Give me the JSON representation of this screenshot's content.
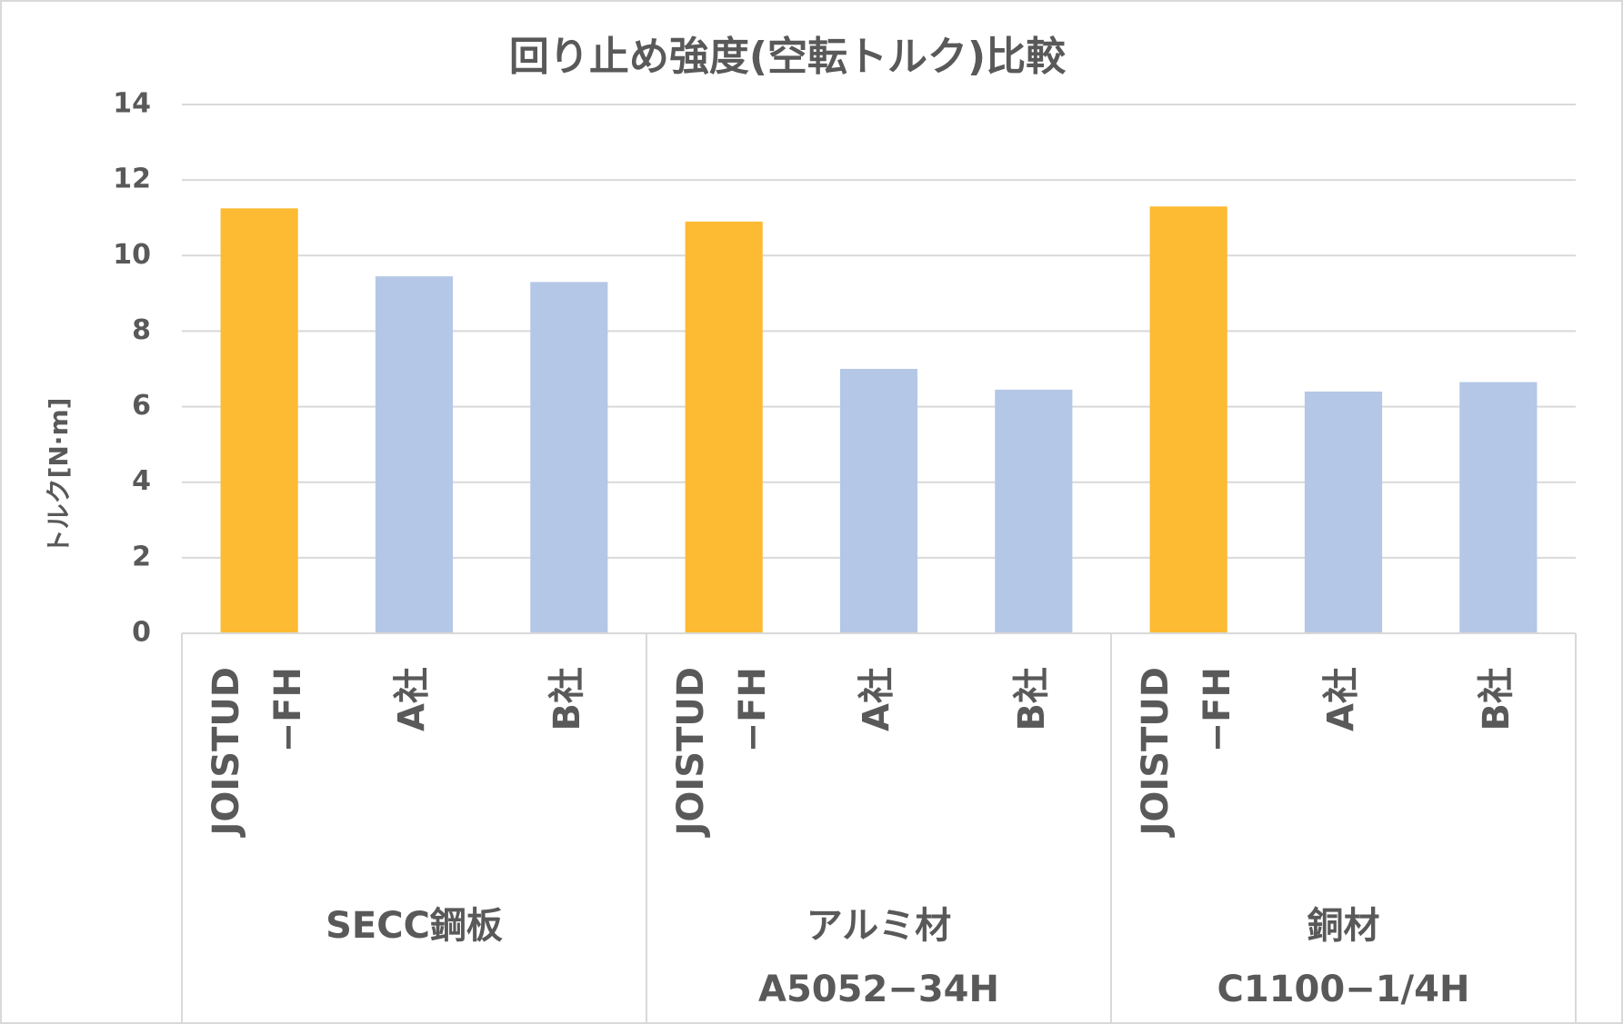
{
  "chart_data": {
    "type": "bar",
    "title": "回り止め強度(空転トルク)比較",
    "y_label": "トルク[N·m]",
    "categories": [
      [
        "JOISTUD",
        "−FH"
      ],
      [
        "A社"
      ],
      [
        "B社"
      ],
      [
        "JOISTUD",
        "−FH"
      ],
      [
        "A社"
      ],
      [
        "B社"
      ],
      [
        "JOISTUD",
        "−FH"
      ],
      [
        "A社"
      ],
      [
        "B社"
      ]
    ],
    "groups": [
      [
        "SECC鋼板"
      ],
      [
        "アルミ材",
        "A5052−34H"
      ],
      [
        "銅材",
        "C1100−1/4H"
      ]
    ],
    "values": [
      11.25,
      9.45,
      9.3,
      10.9,
      7.0,
      6.45,
      11.3,
      6.4,
      6.65
    ],
    "colors": [
      "#fdba33",
      "#b4c7e7",
      "#b4c7e7",
      "#fdba33",
      "#b4c7e7",
      "#b4c7e7",
      "#fdba33",
      "#b4c7e7",
      "#b4c7e7"
    ],
    "ylim": [
      0,
      14
    ],
    "yticks": [
      0,
      2,
      4,
      6,
      8,
      10,
      12,
      14
    ],
    "grid": true
  }
}
